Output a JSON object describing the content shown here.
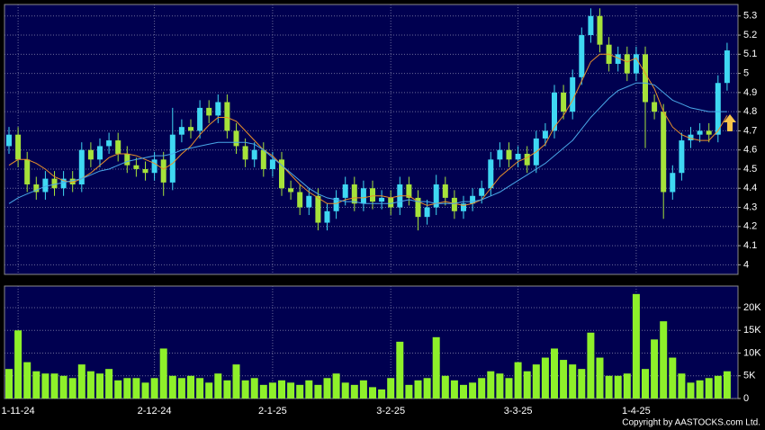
{
  "chart_data": [
    {
      "type": "candlestick",
      "x": [
        null,
        "1-11-24",
        null,
        null,
        null,
        null,
        null,
        null,
        null,
        null,
        null,
        null,
        null,
        null,
        null,
        null,
        "2-12-24",
        null,
        null,
        null,
        null,
        null,
        null,
        null,
        null,
        null,
        null,
        null,
        null,
        "2-1-25",
        null,
        null,
        null,
        null,
        null,
        null,
        null,
        null,
        null,
        null,
        null,
        null,
        "3-2-25",
        null,
        null,
        null,
        null,
        null,
        null,
        null,
        null,
        null,
        null,
        null,
        null,
        null,
        "3-3-25",
        null,
        null,
        null,
        null,
        null,
        null,
        null,
        null,
        null,
        null,
        null,
        null,
        "1-4-25",
        null,
        null,
        null,
        null,
        null,
        null,
        null,
        null,
        null,
        null
      ],
      "open": [
        4.62,
        4.68,
        4.55,
        4.42,
        4.38,
        4.45,
        4.4,
        4.45,
        4.42,
        4.6,
        4.55,
        4.62,
        4.65,
        4.58,
        4.52,
        4.5,
        4.48,
        4.55,
        4.43,
        4.68,
        4.72,
        4.7,
        4.82,
        4.78,
        4.85,
        4.7,
        4.62,
        4.55,
        4.6,
        4.5,
        4.55,
        4.4,
        4.38,
        4.3,
        4.36,
        4.22,
        4.28,
        4.35,
        4.42,
        4.32,
        4.4,
        4.33,
        4.35,
        4.3,
        4.42,
        4.35,
        4.25,
        4.3,
        4.42,
        4.35,
        4.28,
        4.32,
        4.36,
        4.4,
        4.55,
        4.6,
        4.55,
        4.58,
        4.52,
        4.66,
        4.7,
        4.9,
        4.8,
        4.98,
        5.2,
        5.3,
        5.15,
        5.05,
        5.1,
        5.0,
        5.1,
        4.85,
        4.8,
        4.38,
        4.48,
        4.65,
        4.68,
        4.7,
        4.68,
        4.95
      ],
      "high": [
        4.72,
        4.72,
        4.59,
        4.46,
        4.49,
        4.49,
        4.49,
        4.49,
        4.64,
        4.64,
        4.66,
        4.69,
        4.69,
        4.62,
        4.56,
        4.54,
        4.59,
        4.59,
        4.82,
        4.76,
        4.76,
        4.86,
        4.86,
        4.89,
        4.89,
        4.74,
        4.66,
        4.64,
        4.64,
        4.59,
        4.59,
        4.44,
        4.42,
        4.4,
        4.4,
        4.32,
        4.39,
        4.46,
        4.46,
        4.44,
        4.44,
        4.39,
        4.39,
        4.46,
        4.46,
        4.39,
        4.34,
        4.47,
        4.46,
        4.39,
        4.36,
        4.4,
        4.44,
        4.59,
        4.64,
        4.64,
        4.62,
        4.62,
        4.7,
        4.74,
        4.94,
        4.94,
        5.02,
        5.24,
        5.34,
        5.34,
        5.19,
        5.14,
        5.14,
        5.14,
        5.14,
        4.89,
        4.84,
        4.52,
        4.69,
        4.72,
        4.74,
        4.74,
        4.99,
        5.16
      ],
      "low": [
        4.58,
        4.51,
        4.38,
        4.34,
        4.34,
        4.36,
        4.36,
        4.38,
        4.38,
        4.51,
        4.51,
        4.58,
        4.54,
        4.48,
        4.46,
        4.44,
        4.44,
        4.36,
        4.39,
        4.64,
        4.66,
        4.66,
        4.74,
        4.74,
        4.66,
        4.58,
        4.51,
        4.51,
        4.46,
        4.46,
        4.36,
        4.34,
        4.26,
        4.26,
        4.18,
        4.18,
        4.24,
        4.31,
        4.28,
        4.28,
        4.29,
        4.29,
        4.26,
        4.26,
        4.31,
        4.18,
        4.21,
        4.26,
        4.31,
        4.24,
        4.24,
        4.28,
        4.32,
        4.36,
        4.51,
        4.51,
        4.51,
        4.48,
        4.48,
        4.62,
        4.66,
        4.76,
        4.76,
        4.94,
        5.16,
        5.11,
        5.01,
        5.01,
        4.96,
        4.96,
        4.61,
        4.76,
        4.24,
        4.34,
        4.44,
        4.61,
        4.64,
        4.64,
        4.64,
        4.91
      ],
      "close": [
        4.68,
        4.55,
        4.42,
        4.38,
        4.45,
        4.4,
        4.45,
        4.42,
        4.6,
        4.55,
        4.62,
        4.65,
        4.58,
        4.52,
        4.5,
        4.48,
        4.55,
        4.43,
        4.68,
        4.72,
        4.7,
        4.82,
        4.78,
        4.85,
        4.7,
        4.62,
        4.55,
        4.6,
        4.5,
        4.55,
        4.4,
        4.38,
        4.3,
        4.36,
        4.22,
        4.28,
        4.35,
        4.42,
        4.32,
        4.4,
        4.33,
        4.35,
        4.3,
        4.42,
        4.35,
        4.25,
        4.3,
        4.42,
        4.35,
        4.28,
        4.32,
        4.36,
        4.4,
        4.55,
        4.6,
        4.55,
        4.58,
        4.52,
        4.66,
        4.7,
        4.9,
        4.8,
        4.98,
        5.2,
        5.3,
        5.15,
        5.05,
        5.1,
        5.0,
        5.1,
        4.85,
        4.8,
        4.38,
        4.48,
        4.65,
        4.68,
        4.7,
        4.68,
        4.95,
        5.12
      ],
      "series": [
        {
          "color": "#e8902a",
          "values": [
            4.52,
            4.55,
            4.55,
            4.53,
            4.5,
            4.46,
            4.44,
            4.43,
            4.45,
            4.48,
            4.52,
            4.56,
            4.58,
            4.58,
            4.57,
            4.55,
            4.53,
            4.5,
            4.53,
            4.58,
            4.62,
            4.68,
            4.73,
            4.77,
            4.77,
            4.75,
            4.7,
            4.65,
            4.6,
            4.57,
            4.52,
            4.47,
            4.42,
            4.38,
            4.35,
            4.32,
            4.32,
            4.34,
            4.35,
            4.35,
            4.36,
            4.36,
            4.35,
            4.36,
            4.36,
            4.33,
            4.31,
            4.32,
            4.33,
            4.32,
            4.31,
            4.32,
            4.34,
            4.4,
            4.46,
            4.5,
            4.54,
            4.56,
            4.59,
            4.63,
            4.72,
            4.78,
            4.86,
            4.96,
            5.06,
            5.1,
            5.1,
            5.08,
            5.06,
            5.08,
            5.0,
            4.92,
            4.8,
            4.72,
            4.68,
            4.66,
            4.65,
            4.65,
            4.7,
            4.78
          ]
        },
        {
          "color": "#4aa8e8",
          "values": [
            4.32,
            4.35,
            4.37,
            4.39,
            4.41,
            4.42,
            4.43,
            4.44,
            4.45,
            4.47,
            4.49,
            4.5,
            4.52,
            4.54,
            4.55,
            4.56,
            4.57,
            4.57,
            4.58,
            4.6,
            4.61,
            4.62,
            4.63,
            4.64,
            4.64,
            4.64,
            4.64,
            4.63,
            4.6,
            4.56,
            4.52,
            4.48,
            4.44,
            4.4,
            4.37,
            4.35,
            4.34,
            4.33,
            4.33,
            4.32,
            4.32,
            4.32,
            4.32,
            4.33,
            4.34,
            4.33,
            4.33,
            4.32,
            4.32,
            4.32,
            4.33,
            4.33,
            4.34,
            4.36,
            4.38,
            4.41,
            4.44,
            4.47,
            4.5,
            4.53,
            4.57,
            4.61,
            4.65,
            4.71,
            4.77,
            4.82,
            4.87,
            4.91,
            4.93,
            4.95,
            4.95,
            4.94,
            4.9,
            4.86,
            4.84,
            4.82,
            4.81,
            4.8,
            4.8,
            4.8
          ]
        }
      ],
      "up_color": "#3fd8f2",
      "down_color": "#a6e23a",
      "ylim": [
        3.95,
        5.36
      ],
      "yticks": [
        4,
        4.1,
        4.2,
        4.3,
        4.4,
        4.5,
        4.6,
        4.7,
        4.8,
        4.9,
        5,
        5.1,
        5.2,
        5.3
      ],
      "grid": true
    },
    {
      "type": "bar",
      "values": [
        6500,
        15000,
        8000,
        6000,
        5500,
        5500,
        5000,
        4500,
        7500,
        6000,
        5500,
        6500,
        4000,
        4500,
        4500,
        3500,
        4500,
        11000,
        5000,
        4500,
        5000,
        4500,
        3500,
        5500,
        4000,
        7500,
        4000,
        4500,
        3000,
        3500,
        4000,
        3500,
        3000,
        4000,
        3000,
        4500,
        5500,
        3500,
        3000,
        4000,
        2500,
        2000,
        4500,
        12500,
        3000,
        4000,
        4500,
        13500,
        5000,
        4000,
        3000,
        3500,
        4500,
        6000,
        5500,
        4500,
        8000,
        6000,
        7500,
        9000,
        11000,
        8500,
        7500,
        6500,
        14500,
        9000,
        5000,
        5000,
        5500,
        23000,
        6500,
        13000,
        17000,
        9000,
        5500,
        3500,
        4000,
        4500,
        5000,
        6000
      ],
      "color": "#8ef02a",
      "ylim": [
        0,
        24750
      ],
      "yticks": [
        0,
        {
          "value": 5000,
          "label": "5K"
        },
        {
          "value": 10000,
          "label": "10K"
        },
        {
          "value": 15000,
          "label": "15K"
        },
        {
          "value": 20000,
          "label": "20K"
        }
      ],
      "grid": true
    }
  ],
  "copyright": "Copyright by AASTOCKS.com Ltd."
}
